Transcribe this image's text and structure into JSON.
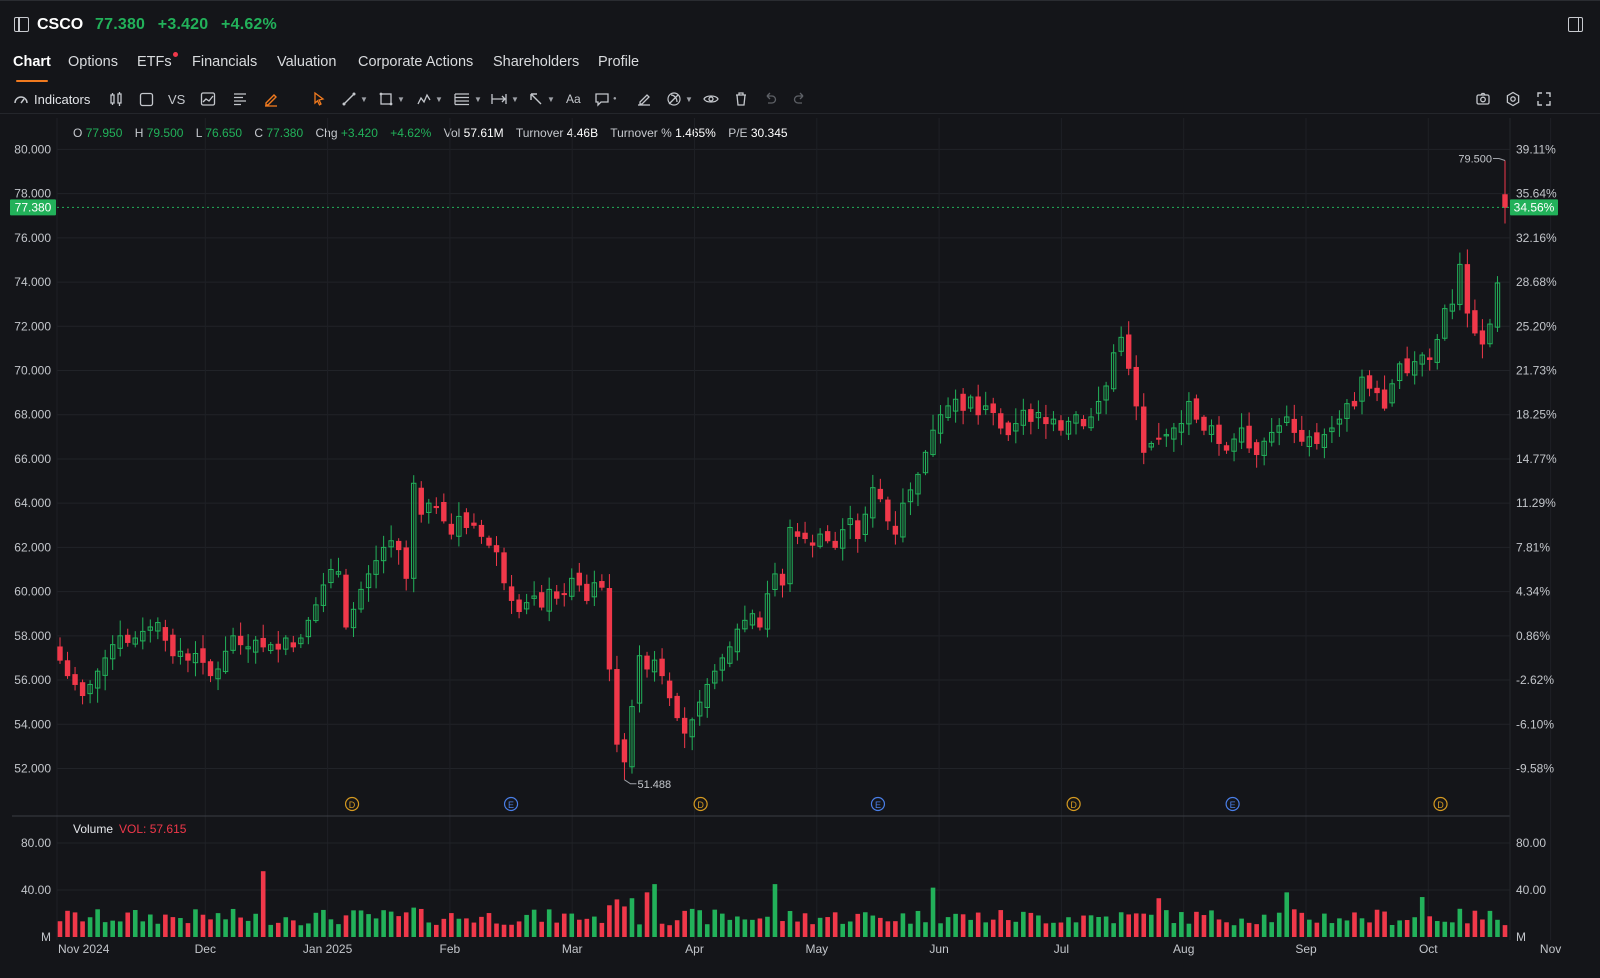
{
  "header": {
    "ticker": "CSCO",
    "price": "77.380",
    "change": "+3.420",
    "change_pct": "+4.62%"
  },
  "tabs": [
    {
      "label": "Chart",
      "active": true
    },
    {
      "label": "Options"
    },
    {
      "label": "ETFs",
      "has_dot": true
    },
    {
      "label": "Financials"
    },
    {
      "label": "Valuation"
    },
    {
      "label": "Corporate Actions"
    },
    {
      "label": "Shareholders"
    },
    {
      "label": "Profile"
    }
  ],
  "toolbar": {
    "indicators_label": "Indicators",
    "compare_label": "VS",
    "text_tool_label": "Aa"
  },
  "ohlc": {
    "o_label": "O",
    "o": "77.950",
    "h_label": "H",
    "h": "79.500",
    "l_label": "L",
    "l": "76.650",
    "c_label": "C",
    "c": "77.380",
    "chg_label": "Chg",
    "chg": "+3.420",
    "chg_pct": "+4.62%",
    "vol_label": "Vol",
    "vol": "57.61M",
    "turnover_label": "Turnover",
    "turnover": "4.46B",
    "turnover_pct_label": "Turnover %",
    "turnover_pct": "1.465%",
    "pe_label": "P/E",
    "pe": "30.345"
  },
  "volume_legend": {
    "label": "Volume",
    "value": "VOL: 57.615"
  },
  "colors": {
    "up": "#22b15a",
    "down": "#f0384a",
    "accent": "#f07a1f",
    "background": "#141519"
  },
  "chart_data": {
    "type": "candlestick",
    "price_axis": {
      "ylim": [
        50.8,
        80.2
      ],
      "ticks": [
        "80.000",
        "78.000",
        "76.000",
        "74.000",
        "72.000",
        "70.000",
        "68.000",
        "66.000",
        "64.000",
        "62.000",
        "60.000",
        "58.000",
        "56.000",
        "54.000",
        "52.000"
      ]
    },
    "percent_axis": {
      "ticks": [
        "39.11%",
        "35.64%",
        "32.16%",
        "28.68%",
        "25.20%",
        "21.73%",
        "18.25%",
        "14.77%",
        "11.29%",
        "7.81%",
        "4.34%",
        "0.86%",
        "-2.62%",
        "-6.10%",
        "-9.58%"
      ]
    },
    "last_price_tag": "77.380",
    "last_pct_tag": "34.56%",
    "last_price": 77.38,
    "high_marker": {
      "label": "79.500",
      "value": 79.5
    },
    "low_marker": {
      "label": "51.488",
      "value": 51.488
    },
    "x_labels": [
      "Nov 2024",
      "Dec",
      "Jan 2025",
      "Feb",
      "Mar",
      "Apr",
      "May",
      "Jun",
      "Jul",
      "Aug",
      "Sep",
      "Oct",
      "Nov"
    ],
    "events": [
      {
        "type": "D",
        "month_offset": 2.2
      },
      {
        "type": "E",
        "month_offset": 3.5
      },
      {
        "type": "D",
        "month_offset": 5.05
      },
      {
        "type": "E",
        "month_offset": 6.5
      },
      {
        "type": "D",
        "month_offset": 8.1
      },
      {
        "type": "E",
        "month_offset": 9.4
      },
      {
        "type": "D",
        "month_offset": 11.1
      }
    ],
    "closes": [
      56.9,
      56.2,
      55.8,
      55.3,
      55.8,
      56.4,
      57.0,
      57.6,
      58.0,
      57.7,
      57.9,
      58.2,
      58.4,
      58.6,
      57.8,
      57.1,
      57.3,
      56.9,
      57.2,
      56.8,
      56.2,
      56.5,
      57.3,
      58.0,
      57.6,
      57.5,
      57.8,
      57.5,
      57.6,
      57.4,
      57.9,
      57.5,
      57.9,
      58.7,
      59.4,
      60.3,
      61.0,
      60.9,
      58.4,
      59.2,
      60.1,
      60.8,
      61.4,
      62.0,
      62.3,
      61.9,
      60.6,
      64.9,
      63.5,
      64.0,
      63.8,
      63.2,
      62.6,
      63.4,
      62.9,
      63.0,
      62.5,
      62.1,
      61.8,
      60.4,
      59.6,
      59.1,
      59.5,
      59.8,
      59.3,
      60.1,
      59.7,
      59.9,
      60.6,
      60.3,
      59.6,
      60.4,
      60.2,
      56.5,
      53.1,
      52.3,
      54.8,
      57.1,
      56.5,
      56.9,
      56.2,
      55.2,
      54.3,
      53.6,
      54.2,
      55.0,
      55.8,
      56.4,
      57.0,
      57.5,
      58.3,
      58.7,
      59.0,
      58.4,
      59.9,
      60.8,
      60.3,
      62.9,
      62.5,
      62.4,
      62.1,
      62.6,
      62.3,
      62.0,
      62.8,
      63.3,
      62.4,
      63.5,
      64.7,
      64.2,
      63.2,
      62.6,
      64.0,
      64.6,
      65.3,
      66.3,
      67.3,
      68.0,
      68.4,
      68.7,
      68.2,
      68.8,
      68.0,
      68.4,
      68.1,
      67.4,
      67.1,
      67.6,
      68.2,
      67.7,
      68.1,
      67.6,
      67.8,
      67.3,
      67.7,
      68.0,
      67.5,
      67.9,
      68.6,
      69.3,
      70.8,
      71.5,
      70.1,
      68.4,
      66.3,
      66.7,
      66.9,
      67.1,
      67.4,
      67.6,
      68.6,
      67.8,
      67.3,
      67.5,
      66.7,
      66.4,
      66.9,
      67.4,
      66.5,
      66.2,
      66.8,
      67.2,
      67.5,
      67.9,
      67.2,
      66.8,
      67.0,
      66.7,
      67.1,
      67.4,
      67.8,
      68.5,
      68.4,
      69.7,
      69.2,
      69.0,
      68.3,
      69.4,
      70.3,
      69.9,
      70.4,
      70.7,
      70.5,
      71.4,
      72.8,
      73.0,
      74.8,
      72.6,
      71.7,
      71.2,
      72.1,
      73.96,
      77.38
    ],
    "volume_axis": {
      "ticks": [
        "80.00",
        "40.00",
        "M"
      ],
      "ylim": [
        0,
        80
      ]
    }
  }
}
